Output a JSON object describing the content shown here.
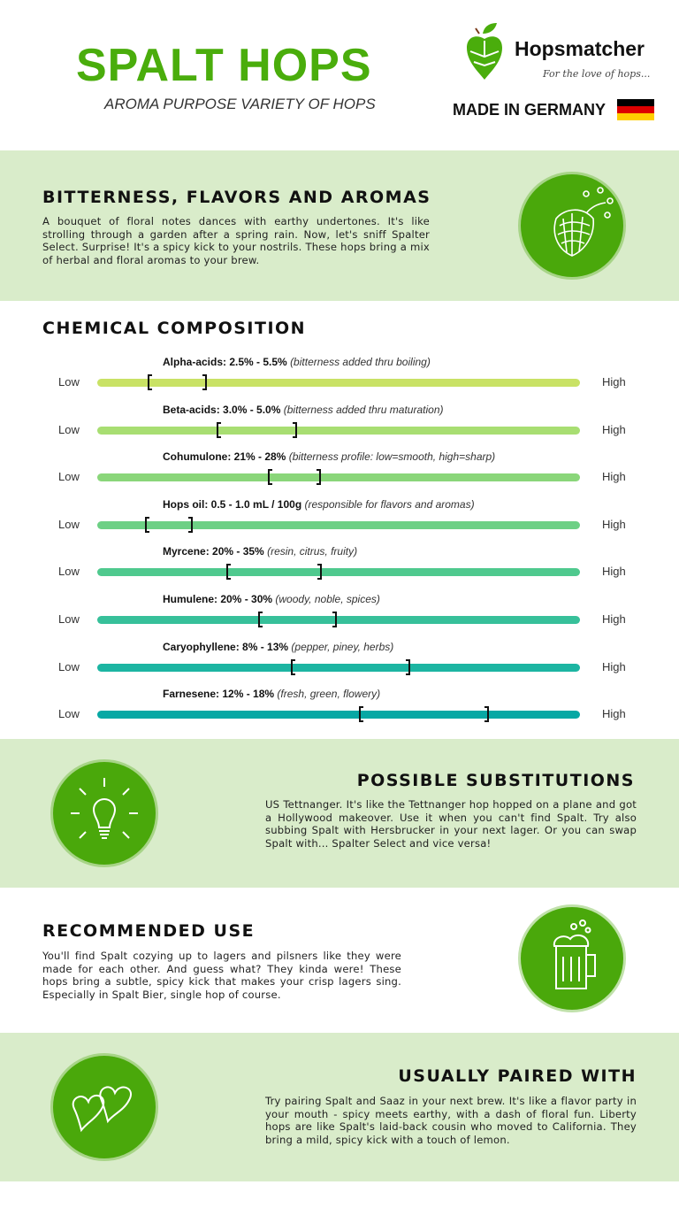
{
  "header": {
    "title": "SPALT HOPS",
    "subtitle": "AROMA PURPOSE VARIETY OF HOPS",
    "brand": "Hopsmatcher",
    "tagline": "For the love of hops...",
    "made_in": "MADE IN GERMANY",
    "flag_colors": [
      "#000000",
      "#dd0000",
      "#ffce00"
    ]
  },
  "colors": {
    "accent": "#4aad0c",
    "section_bg": "#d9ecca"
  },
  "bitterness": {
    "title": "BITTERNESS, FLAVORS AND AROMAS",
    "text": "A bouquet of floral notes dances with earthy undertones. It's like strolling through a garden after a spring rain. Now, let's sniff Spalter Select. Surprise! It's a spicy kick to your nostrils. These hops bring a mix of herbal and floral aromas to your brew.",
    "icon": "hop-cone-icon"
  },
  "chemical": {
    "title": "CHEMICAL COMPOSITION",
    "low_label": "Low",
    "high_label": "High",
    "rows": [
      {
        "name": "Alpha-acids: 2.5% - 5.5%",
        "note": "(bitterness added thru boiling)",
        "range": [
          0.105,
          0.228
        ],
        "color": "#c9e265"
      },
      {
        "name": "Beta-acids: 3.0% - 5.0%",
        "note": "(bitterness added thru maturation)",
        "range": [
          0.248,
          0.414
        ],
        "color": "#a8de72"
      },
      {
        "name": "Cohumulone: 21% - 28%",
        "note": "(bitterness profile: low=smooth, high=sharp)",
        "range": [
          0.353,
          0.463
        ],
        "color": "#8ad67a"
      },
      {
        "name": "Hops oil: 0.5 - 1.0 mL / 100g",
        "note": "(responsible for flavors and aromas)",
        "range": [
          0.099,
          0.197
        ],
        "color": "#6dd085"
      },
      {
        "name": "Myrcene: 20% - 35%",
        "note": "(resin, citrus, fruity)",
        "range": [
          0.267,
          0.465
        ],
        "color": "#4fc98e"
      },
      {
        "name": "Humulene: 20% - 30%",
        "note": "(woody, noble, spices)",
        "range": [
          0.333,
          0.496
        ],
        "color": "#37c09a"
      },
      {
        "name": "Caryophyllene: 8% - 13%",
        "note": "(pepper, piney, herbs)",
        "range": [
          0.401,
          0.649
        ],
        "color": "#1cb5a2"
      },
      {
        "name": "Farnesene: 12% - 18%",
        "note": "(fresh, green, flowery)",
        "range": [
          0.542,
          0.812
        ],
        "color": "#07a8a4"
      }
    ]
  },
  "substitutions": {
    "title": "POSSIBLE SUBSTITUTIONS",
    "text": "US Tettnanger. It's like the Tettnanger hop hopped on a plane and got a Hollywood makeover. Use it when you can't find Spalt. Try also subbing Spalt with Hersbrucker in your next lager. Or you can swap Spalt with... Spalter Select and vice versa!",
    "icon": "lightbulb-icon"
  },
  "recommended": {
    "title": "RECOMMENDED USE",
    "text": "You'll find Spalt cozying up to lagers and pilsners like they were made for each other. And guess what? They kinda were! These hops bring a subtle, spicy kick that makes your crisp lagers sing. Especially in Spalt Bier, single hop of course.",
    "icon": "beer-mug-icon"
  },
  "paired": {
    "title": "USUALLY PAIRED WITH",
    "text": "Try pairing Spalt and Saaz in your next brew. It's like a flavor party in your mouth - spicy meets earthy, with a dash of floral fun. Liberty hops are like Spalt's laid-back cousin who moved to California. They bring a mild, spicy kick with a touch of lemon.",
    "icon": "hearts-icon"
  }
}
